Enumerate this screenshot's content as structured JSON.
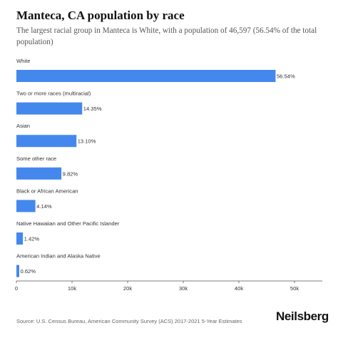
{
  "chart_data": {
    "type": "bar",
    "orientation": "horizontal",
    "title": "Manteca, CA population by race",
    "subtitle": "The largest racial group in Manteca is White, with a population of 46,597 (56.54% of the total population)",
    "categories": [
      "White",
      "Two or more races (multiracial)",
      "Asian",
      "Some other race",
      "Black or African American",
      "Native Hawaiian and Other Pacific Islander",
      "American Indian and Alaska Native"
    ],
    "values": [
      46597,
      11826,
      10796,
      8093,
      3412,
      1170,
      511
    ],
    "data_labels": [
      "56.54%",
      "14.35%",
      "13.10%",
      "9.82%",
      "4.14%",
      "1.42%",
      "0.62%"
    ],
    "xlim": [
      0,
      55000
    ],
    "x_ticks": [
      0,
      10000,
      20000,
      30000,
      40000,
      50000
    ],
    "x_tick_labels": [
      "0",
      "10k",
      "20k",
      "30k",
      "40k",
      "50k"
    ],
    "bar_color": "#4488ee",
    "grid": false,
    "legend": "none"
  },
  "footer": {
    "source": "Source: U.S. Census Bureau, American Community Survey (ACS) 2017-2021 5-Year Estimates",
    "brand": "Neilsberg"
  }
}
